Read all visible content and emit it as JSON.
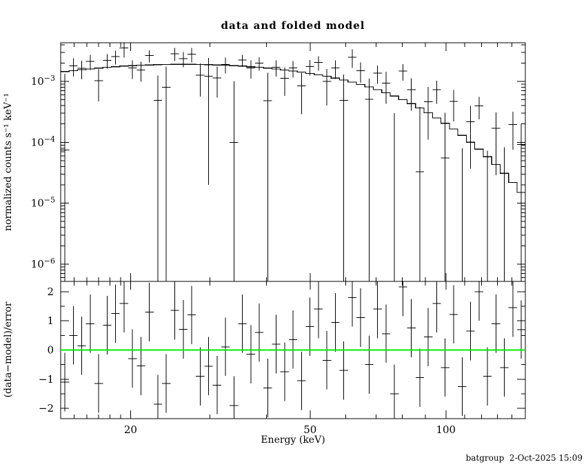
{
  "chart_data": {
    "type": "line",
    "title": "data and folded model",
    "xlabel": "Energy (keV)",
    "footer": "batgroup  2-Oct-2025 15:09",
    "x": {
      "scale": "log",
      "min": 14,
      "max": 150,
      "major_ticks": [
        20,
        50,
        100
      ],
      "minor_ticks": [
        15,
        16,
        17,
        18,
        19,
        30,
        40,
        60,
        70,
        80,
        90,
        110,
        120,
        130,
        140
      ]
    },
    "panels": [
      {
        "name": "spectrum",
        "ylabel": "normalized counts s⁻¹ keV⁻¹",
        "yscale": "log",
        "ylim": [
          5.2e-07,
          0.0043
        ],
        "ytick_exponents": [
          -3,
          -4,
          -5,
          -6
        ]
      },
      {
        "name": "residuals",
        "ylabel": "(data−model)/error",
        "yscale": "linear",
        "ylim": [
          -2.35,
          2.35
        ],
        "yticks": [
          2,
          1,
          0,
          -1,
          -2
        ],
        "minor_yticks": [
          1.5,
          0.5,
          -0.5,
          -1.5
        ],
        "zero_line_color": "#00ee00",
        "residual_bar_halfheight": 1
      }
    ],
    "bins": {
      "edges": [
        14.0,
        14.62,
        15.26,
        15.93,
        16.64,
        17.37,
        18.13,
        18.93,
        19.77,
        20.64,
        21.55,
        22.5,
        23.49,
        24.53,
        25.61,
        26.74,
        27.92,
        29.15,
        30.43,
        31.77,
        33.17,
        34.63,
        36.16,
        37.75,
        39.42,
        41.16,
        42.97,
        44.86,
        46.84,
        48.9,
        51.06,
        53.31,
        55.66,
        58.11,
        60.68,
        63.35,
        66.14,
        69.06,
        72.1,
        75.28,
        78.6,
        82.06,
        85.68,
        89.45,
        93.4,
        97.51,
        101.81,
        106.3,
        110.98,
        115.87,
        120.98,
        126.31,
        131.88,
        137.69,
        143.76,
        150.0
      ],
      "model": [
        0.00145,
        0.0015,
        0.00155,
        0.0016,
        0.00165,
        0.0017,
        0.00174,
        0.00178,
        0.00181,
        0.00184,
        0.00186,
        0.00188,
        0.00189,
        0.0019,
        0.0019,
        0.0019,
        0.00189,
        0.00188,
        0.00186,
        0.00184,
        0.00181,
        0.00178,
        0.00174,
        0.0017,
        0.00165,
        0.0016,
        0.00154,
        0.00148,
        0.00142,
        0.00135,
        0.00128,
        0.00121,
        0.00113,
        0.00105,
        0.00097,
        0.00089,
        0.00081,
        0.00073,
        0.00065,
        0.000575,
        0.0005,
        0.00043,
        0.000365,
        0.000305,
        0.00025,
        0.000205,
        0.000165,
        0.00013,
        0.0001,
        7.7e-05,
        5.8e-05,
        4.3e-05,
        3.1e-05,
        2.2e-05,
        1.5e-05
      ],
      "rate": [
        7.5e-05,
        0.0018,
        0.00163,
        0.00214,
        0.00102,
        0.00221,
        0.00255,
        0.00354,
        0.00165,
        0.00154,
        0.00264,
        0.00049,
        0.0008,
        0.00285,
        0.00236,
        0.0028,
        0.00126,
        0.00122,
        0.00114,
        0.0019,
        0.0001,
        0.00223,
        0.00166,
        0.002,
        0.00048,
        0.0017,
        0.00113,
        0.00166,
        0.00084,
        0.00175,
        0.00205,
        0.001,
        0.00165,
        0.00049,
        0.0025,
        0.0015,
        0.00051,
        0.00136,
        0.00093,
        -0.00025,
        0.00147,
        0.00073,
        3.3e-05,
        0.00046,
        0.00073,
        5.5e-05,
        0.00047,
        -0.00012,
        0.000217,
        0.000397,
        -7.7e-05,
        0.000169,
        -4.7e-05,
        0.000196,
        9.2e-05
      ],
      "error": [
        0.00125,
        0.0006,
        0.00055,
        0.0006,
        0.00055,
        0.0006,
        0.00065,
        0.0011,
        0.00055,
        0.00055,
        0.0006,
        0.00075,
        0.00095,
        0.0007,
        0.00065,
        0.00075,
        0.0007,
        0.0012,
        0.0006,
        0.00055,
        0.0009,
        0.0005,
        0.00055,
        0.0005,
        0.0009,
        0.0005,
        0.00055,
        0.0005,
        0.00055,
        0.0005,
        0.00055,
        0.0006,
        0.00055,
        0.0008,
        0.00085,
        0.00055,
        0.0006,
        0.00045,
        0.0005,
        0.00055,
        0.00045,
        0.0004,
        0.00035,
        0.00035,
        0.0003,
        0.00025,
        0.00025,
        0.0002,
        0.00018,
        0.00016,
        0.00015,
        0.00014,
        0.00013,
        0.00012,
        0.00011
      ]
    }
  }
}
